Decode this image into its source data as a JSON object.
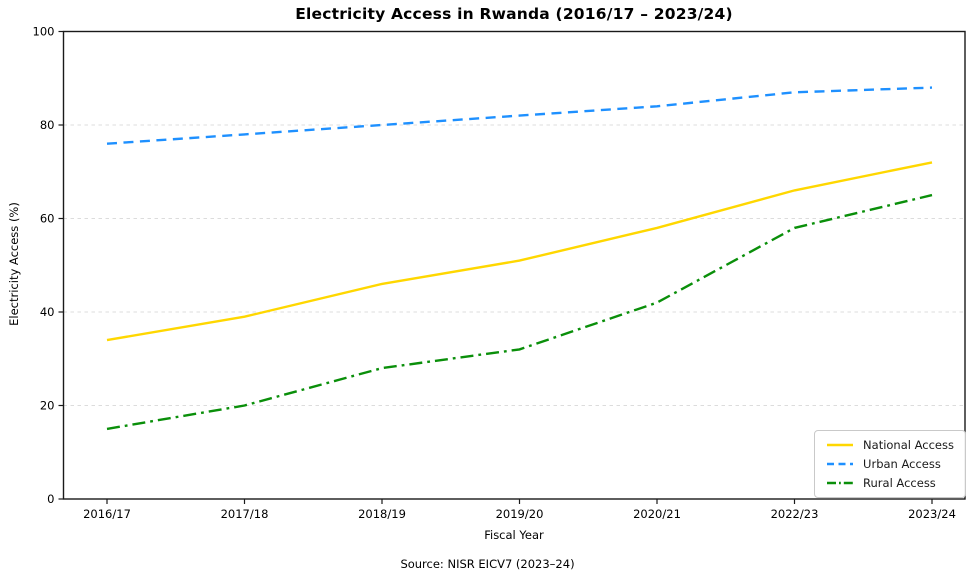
{
  "figure": {
    "title": "Electricity Access in Rwanda (2016/17 – 2023/24)",
    "source_note": "Source: NISR EICV7 (2023–24)"
  },
  "chart_data": {
    "type": "line",
    "title": "Electricity Access in Rwanda (2016/17 – 2023/24)",
    "xlabel": "Fiscal Year",
    "ylabel": "Electricity Access (%)",
    "categories": [
      "2016/17",
      "2017/18",
      "2018/19",
      "2019/20",
      "2020/21",
      "2022/23",
      "2023/24"
    ],
    "series": [
      {
        "name": "National Access",
        "color": "#FFD700",
        "line_style": "solid",
        "values": [
          34,
          39,
          46,
          51,
          58,
          66,
          72
        ]
      },
      {
        "name": "Urban Access",
        "color": "#1E90FF",
        "line_style": "dashed",
        "values": [
          76,
          78,
          80,
          82,
          84,
          87,
          88
        ]
      },
      {
        "name": "Rural Access",
        "color": "#0A8F0A",
        "line_style": "dashdot",
        "values": [
          15,
          20,
          28,
          32,
          42,
          58,
          65
        ]
      }
    ],
    "ylim": [
      0,
      100
    ],
    "yticks": [
      0,
      20,
      40,
      60,
      80,
      100
    ],
    "grid": true,
    "grid_color": "#DCDCDC",
    "axis_color": "#1a1a1a",
    "legend_position": "lower right",
    "annotation": "Source: NISR EICV7 (2023–24)"
  }
}
